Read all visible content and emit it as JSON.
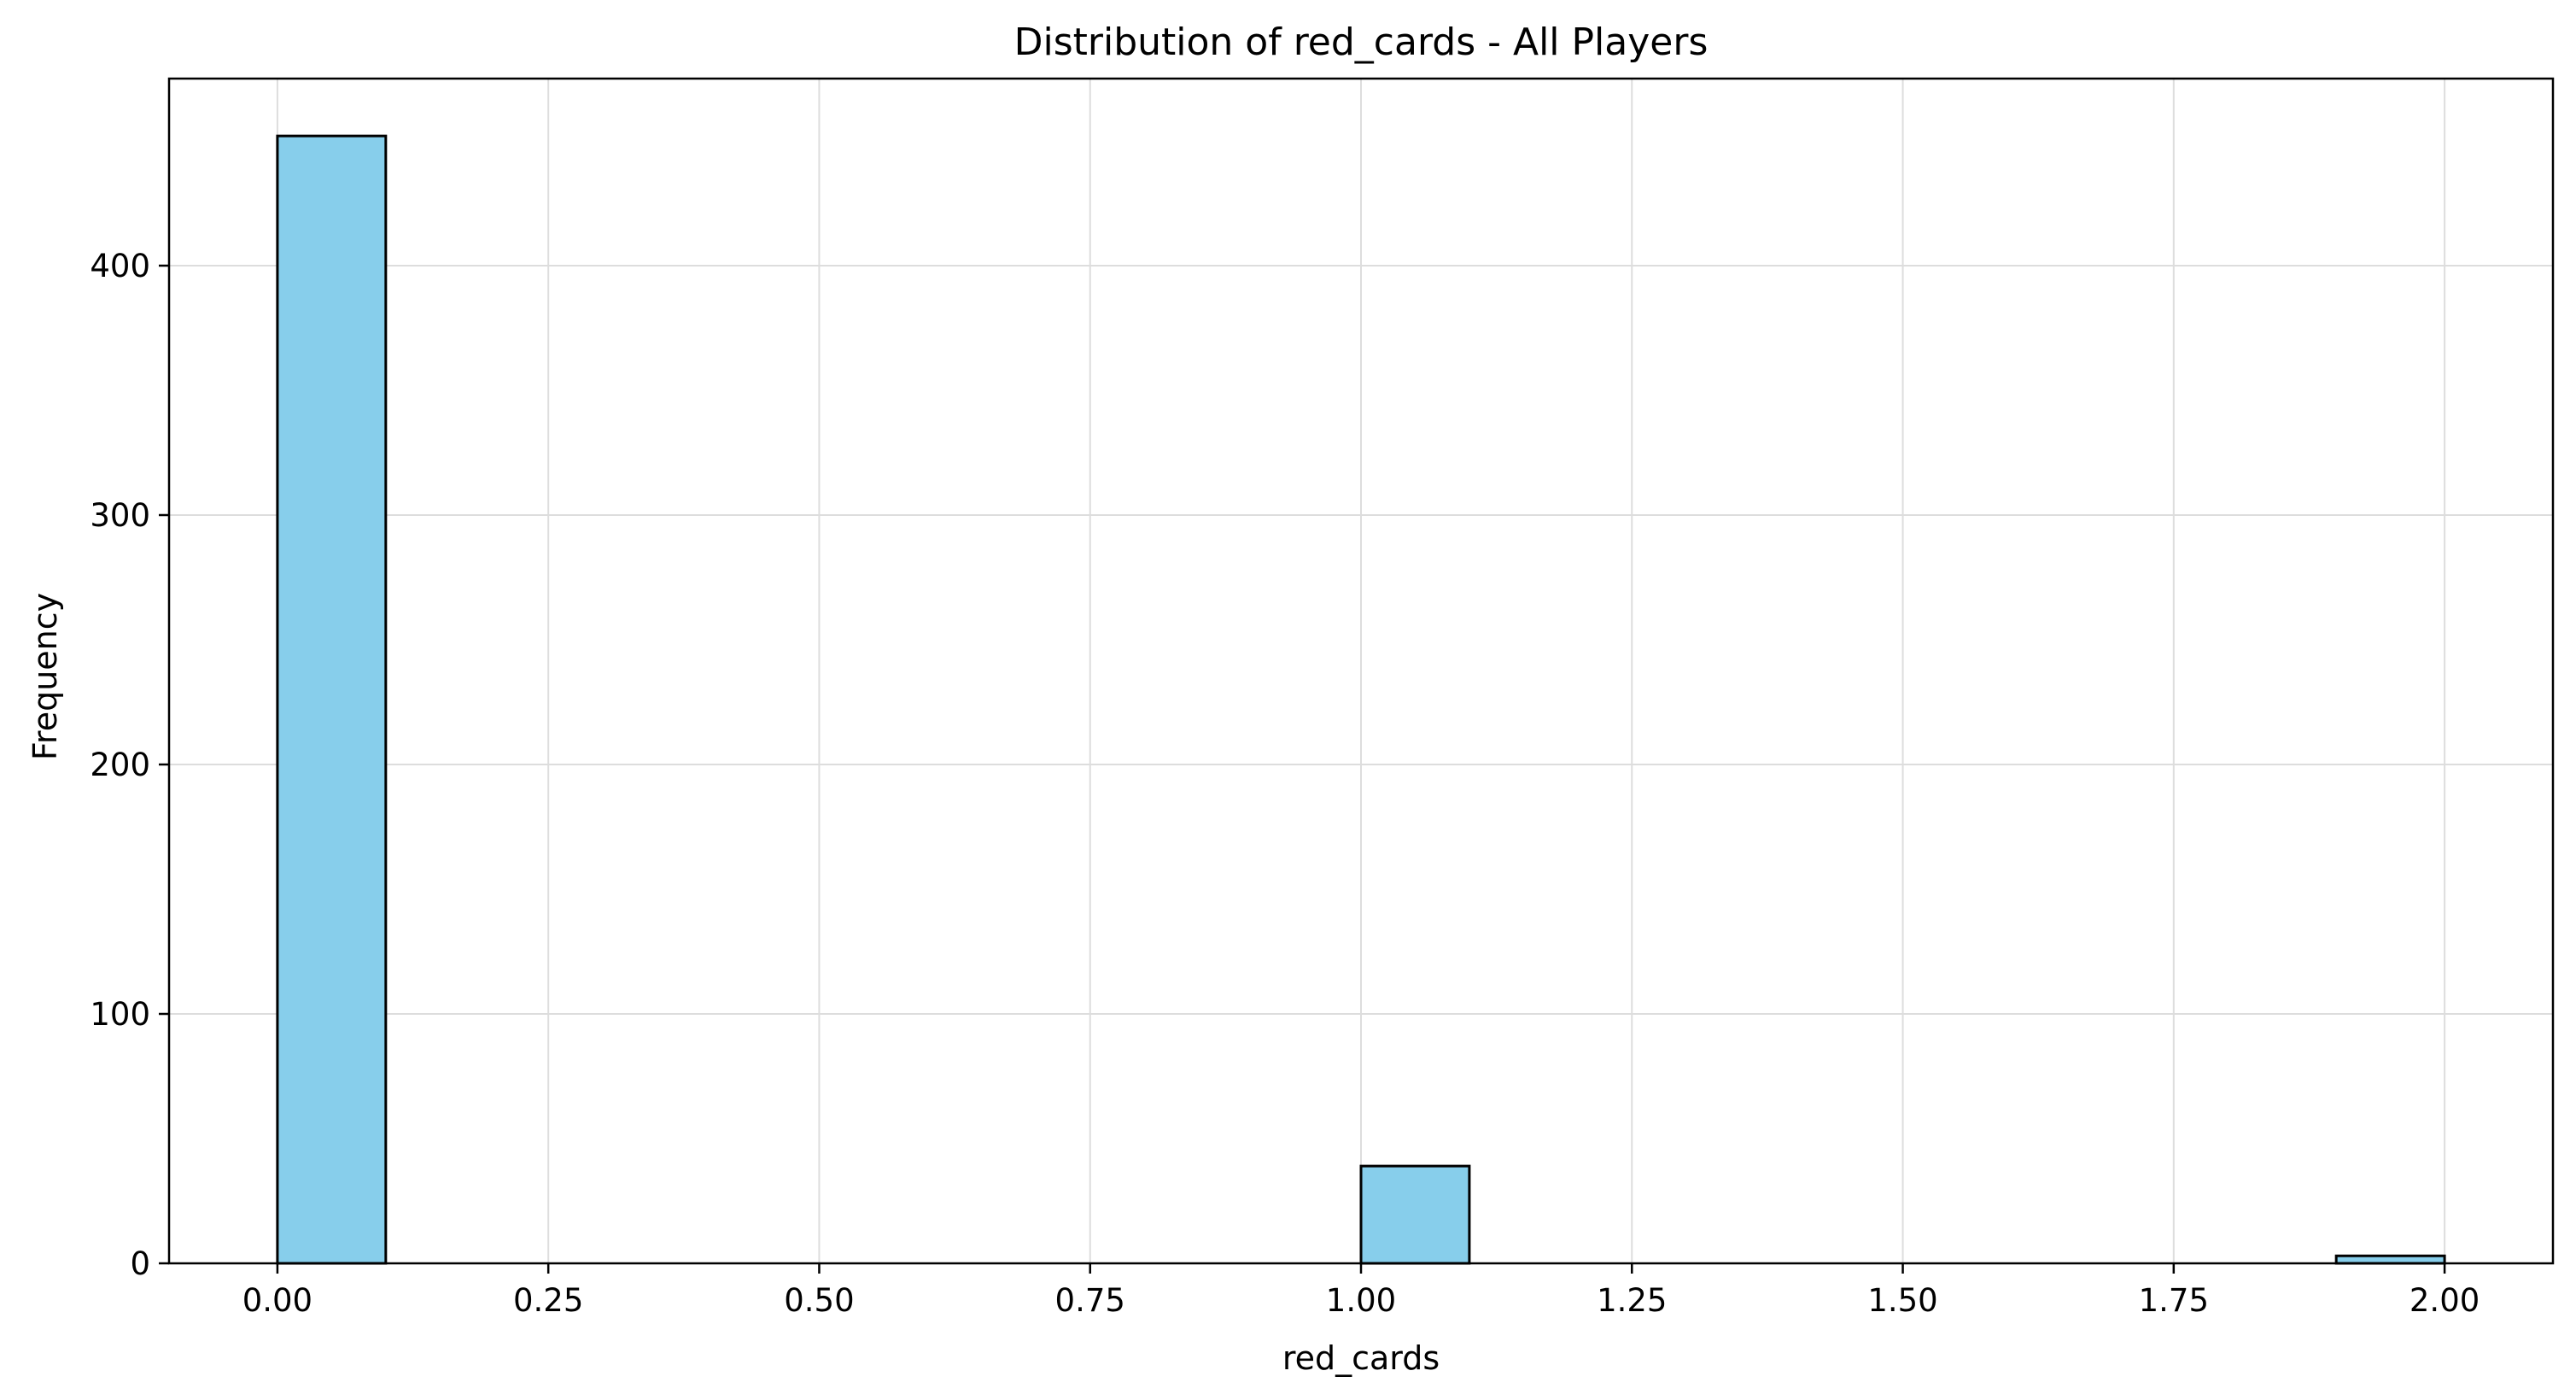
{
  "chart_data": {
    "type": "bar",
    "subtype": "histogram",
    "title": "Distribution of red_cards - All Players",
    "xlabel": "red_cards",
    "ylabel": "Frequency",
    "xlim": [
      -0.1,
      2.1
    ],
    "ylim": [
      0,
      475
    ],
    "grid": true,
    "legend": "none",
    "colors": {
      "bar_fill": "#87ceeb",
      "bar_edge": "#000000",
      "grid": "#dddddd"
    },
    "bin_width": 0.1,
    "bins": [
      {
        "x_start": 0.0,
        "x_end": 0.1,
        "count": 452
      },
      {
        "x_start": 1.0,
        "x_end": 1.1,
        "count": 39
      },
      {
        "x_start": 1.9,
        "x_end": 2.0,
        "count": 3
      }
    ],
    "x_ticks": [
      {
        "value": 0.0,
        "label": "0.00"
      },
      {
        "value": 0.25,
        "label": "0.25"
      },
      {
        "value": 0.5,
        "label": "0.50"
      },
      {
        "value": 0.75,
        "label": "0.75"
      },
      {
        "value": 1.0,
        "label": "1.00"
      },
      {
        "value": 1.25,
        "label": "1.25"
      },
      {
        "value": 1.5,
        "label": "1.50"
      },
      {
        "value": 1.75,
        "label": "1.75"
      },
      {
        "value": 2.0,
        "label": "2.00"
      }
    ],
    "y_ticks": [
      {
        "value": 0,
        "label": "0"
      },
      {
        "value": 100,
        "label": "100"
      },
      {
        "value": 200,
        "label": "200"
      },
      {
        "value": 300,
        "label": "300"
      },
      {
        "value": 400,
        "label": "400"
      }
    ]
  }
}
